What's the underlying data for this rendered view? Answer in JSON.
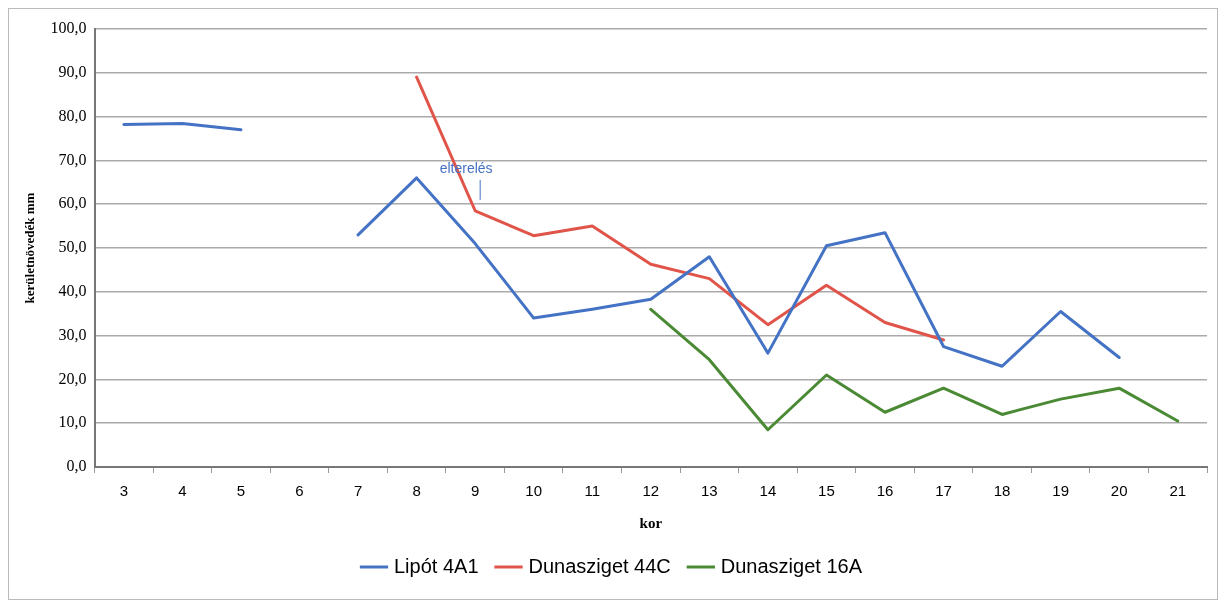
{
  "chart_data": {
    "type": "line",
    "xlabel": "kor",
    "ylabel": "kerületnövedék mm",
    "categories": [
      "3",
      "4",
      "5",
      "6",
      "7",
      "8",
      "9",
      "10",
      "11",
      "12",
      "13",
      "14",
      "15",
      "16",
      "17",
      "18",
      "19",
      "20",
      "21"
    ],
    "series": [
      {
        "name": "Lipót 4A1",
        "color": "#4472c4",
        "values": [
          78.2,
          78.4,
          77,
          null,
          53,
          66,
          51,
          34,
          36,
          38.3,
          48,
          26,
          50.5,
          53.5,
          27.5,
          23,
          35.5,
          25,
          null
        ]
      },
      {
        "name": "Dunasziget 44C",
        "color": "#e0544a",
        "values": [
          null,
          null,
          null,
          null,
          null,
          89,
          58.5,
          52.8,
          55,
          46.3,
          43,
          32.5,
          41.5,
          33,
          29,
          null,
          null,
          null,
          null
        ]
      },
      {
        "name": "Dunasziget 16A",
        "color": "#4a8a34",
        "values": [
          null,
          null,
          null,
          null,
          null,
          null,
          null,
          null,
          null,
          36,
          24.5,
          8.5,
          21,
          12.5,
          18,
          12,
          15.5,
          18,
          10.5
        ]
      }
    ],
    "annotations": [
      {
        "text": "elterelés",
        "x": "9",
        "y": 61
      }
    ],
    "ylim": [
      0,
      100
    ],
    "yticks": [
      {
        "value": 0,
        "label": "0,0"
      },
      {
        "value": 10,
        "label": "10,0"
      },
      {
        "value": 20,
        "label": "20,0"
      },
      {
        "value": 30,
        "label": "30,0"
      },
      {
        "value": 40,
        "label": "40,0"
      },
      {
        "value": 50,
        "label": "50,0"
      },
      {
        "value": 60,
        "label": "60,0"
      },
      {
        "value": 70,
        "label": "70,0"
      },
      {
        "value": 80,
        "label": "80,0"
      },
      {
        "value": 90,
        "label": "90,0"
      },
      {
        "value": 100,
        "label": "100,0"
      }
    ],
    "grid": "y",
    "legend": "bottom",
    "marker": "none",
    "line_style": "solid"
  }
}
